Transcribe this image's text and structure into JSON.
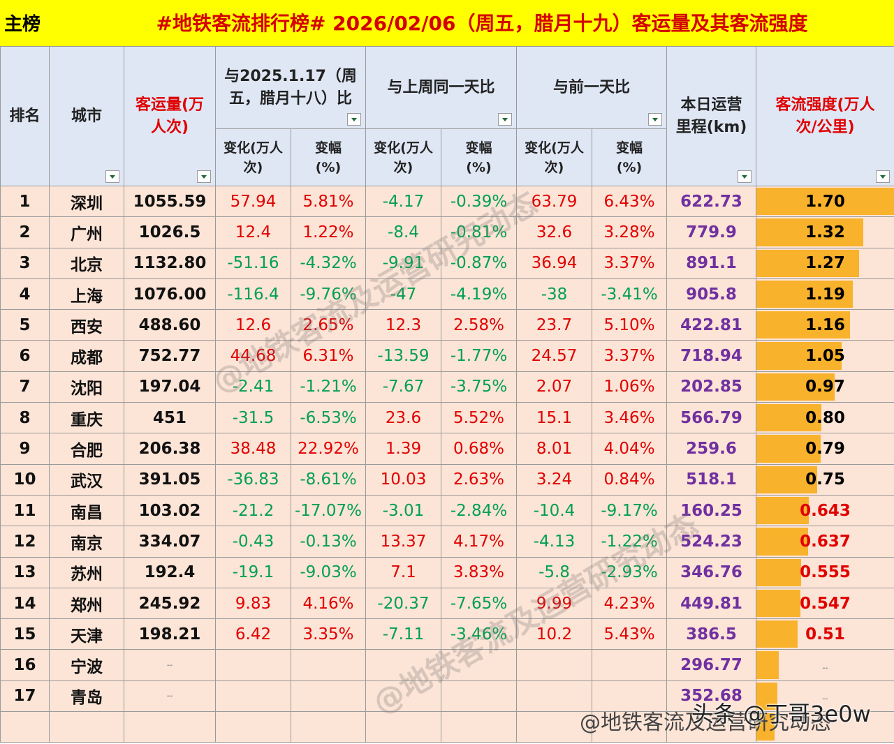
{
  "title": {
    "tag": "主榜",
    "main": "#地铁客流排行榜# 2026/02/06（周五，腊月十九）客运量及其客流强度"
  },
  "headers": {
    "rank": "排名",
    "city": "城市",
    "volume": "客运量(万人次)",
    "group1": "与2025.1.17（周五，腊月十八）比",
    "group2": "与上周同一天比",
    "group3": "与前一天比",
    "mileage": "本日运营里程(km)",
    "intensity": "客流强度(万人次/公里)",
    "change": "变化(万人次)",
    "pct": "变幅(%)"
  },
  "rows": [
    {
      "rank": "1",
      "city": "深圳",
      "vol": "1055.59",
      "c1": "57.94",
      "p1": "5.81%",
      "c2": "-4.17",
      "p2": "-0.39%",
      "c3": "63.79",
      "p3": "6.43%",
      "mile": "622.73",
      "int": "1.70",
      "bar": 1.7
    },
    {
      "rank": "2",
      "city": "广州",
      "vol": "1026.5",
      "c1": "12.4",
      "p1": "1.22%",
      "c2": "-8.4",
      "p2": "-0.81%",
      "c3": "32.6",
      "p3": "3.28%",
      "mile": "779.9",
      "int": "1.32",
      "bar": 1.32
    },
    {
      "rank": "3",
      "city": "北京",
      "vol": "1132.80",
      "c1": "-51.16",
      "p1": "-4.32%",
      "c2": "-9.91",
      "p2": "-0.87%",
      "c3": "36.94",
      "p3": "3.37%",
      "mile": "891.1",
      "int": "1.27",
      "bar": 1.27
    },
    {
      "rank": "4",
      "city": "上海",
      "vol": "1076.00",
      "c1": "-116.4",
      "p1": "-9.76%",
      "c2": "-47",
      "p2": "-4.19%",
      "c3": "-38",
      "p3": "-3.41%",
      "mile": "905.8",
      "int": "1.19",
      "bar": 1.19
    },
    {
      "rank": "5",
      "city": "西安",
      "vol": "488.60",
      "c1": "12.6",
      "p1": "2.65%",
      "c2": "12.3",
      "p2": "2.58%",
      "c3": "23.7",
      "p3": "5.10%",
      "mile": "422.81",
      "int": "1.16",
      "bar": 1.16
    },
    {
      "rank": "6",
      "city": "成都",
      "vol": "752.77",
      "c1": "44.68",
      "p1": "6.31%",
      "c2": "-13.59",
      "p2": "-1.77%",
      "c3": "24.57",
      "p3": "3.37%",
      "mile": "718.94",
      "int": "1.05",
      "bar": 1.05
    },
    {
      "rank": "7",
      "city": "沈阳",
      "vol": "197.04",
      "c1": "-2.41",
      "p1": "-1.21%",
      "c2": "-7.67",
      "p2": "-3.75%",
      "c3": "2.07",
      "p3": "1.06%",
      "mile": "202.85",
      "int": "0.97",
      "bar": 0.97
    },
    {
      "rank": "8",
      "city": "重庆",
      "vol": "451",
      "c1": "-31.5",
      "p1": "-6.53%",
      "c2": "23.6",
      "p2": "5.52%",
      "c3": "15.1",
      "p3": "3.46%",
      "mile": "566.79",
      "int": "0.80",
      "bar": 0.8
    },
    {
      "rank": "9",
      "city": "合肥",
      "vol": "206.38",
      "c1": "38.48",
      "p1": "22.92%",
      "c2": "1.39",
      "p2": "0.68%",
      "c3": "8.01",
      "p3": "4.04%",
      "mile": "259.6",
      "int": "0.79",
      "bar": 0.79
    },
    {
      "rank": "10",
      "city": "武汉",
      "vol": "391.05",
      "c1": "-36.83",
      "p1": "-8.61%",
      "c2": "10.03",
      "p2": "2.63%",
      "c3": "3.24",
      "p3": "0.84%",
      "mile": "518.1",
      "int": "0.75",
      "bar": 0.75
    },
    {
      "rank": "11",
      "city": "南昌",
      "vol": "103.02",
      "c1": "-21.2",
      "p1": "-17.07%",
      "c2": "-3.01",
      "p2": "-2.84%",
      "c3": "-10.4",
      "p3": "-9.17%",
      "mile": "160.25",
      "int": "0.643",
      "bar": 0.643
    },
    {
      "rank": "12",
      "city": "南京",
      "vol": "334.07",
      "c1": "-0.43",
      "p1": "-0.13%",
      "c2": "13.37",
      "p2": "4.17%",
      "c3": "-4.13",
      "p3": "-1.22%",
      "mile": "524.23",
      "int": "0.637",
      "bar": 0.637
    },
    {
      "rank": "13",
      "city": "苏州",
      "vol": "192.4",
      "c1": "-19.1",
      "p1": "-9.03%",
      "c2": "7.1",
      "p2": "3.83%",
      "c3": "-5.8",
      "p3": "-2.93%",
      "mile": "346.76",
      "int": "0.555",
      "bar": 0.555
    },
    {
      "rank": "14",
      "city": "郑州",
      "vol": "245.92",
      "c1": "9.83",
      "p1": "4.16%",
      "c2": "-20.37",
      "p2": "-7.65%",
      "c3": "9.99",
      "p3": "4.23%",
      "mile": "449.81",
      "int": "0.547",
      "bar": 0.547
    },
    {
      "rank": "15",
      "city": "天津",
      "vol": "198.21",
      "c1": "6.42",
      "p1": "3.35%",
      "c2": "-7.11",
      "p2": "-3.46%",
      "c3": "10.2",
      "p3": "5.43%",
      "mile": "386.5",
      "int": "0.51",
      "bar": 0.51
    },
    {
      "rank": "16",
      "city": "宁波",
      "vol": "--",
      "c1": "",
      "p1": "",
      "c2": "",
      "p2": "",
      "c3": "",
      "p3": "",
      "mile": "296.77",
      "int": "--",
      "bar": 0.28
    },
    {
      "rank": "17",
      "city": "青岛",
      "vol": "--",
      "c1": "",
      "p1": "",
      "c2": "",
      "p2": "",
      "c3": "",
      "p3": "",
      "mile": "352.68",
      "int": "--",
      "bar": 0.26
    },
    {
      "rank": "",
      "city": "",
      "vol": "",
      "c1": "",
      "p1": "",
      "c2": "",
      "p2": "",
      "c3": "",
      "p3": "",
      "mile": "",
      "int": "",
      "bar": 0.22
    }
  ],
  "watermarks": {
    "diag1": "@地铁客流及运营研究动态",
    "diag2": "@地铁客流及运营研究动态",
    "bottom": "@地铁客流及运营研究动态",
    "toutiao": "头条 @丁哥3e0w"
  },
  "colors": {
    "title_bg": "#ffff00",
    "title_text": "#d40000",
    "header_bg": "#dfe7f5",
    "row_bg": "#fce4d6",
    "bar": "#f9b22b",
    "up": "#e00000",
    "down": "#00a050",
    "mileage": "#7030a0"
  }
}
